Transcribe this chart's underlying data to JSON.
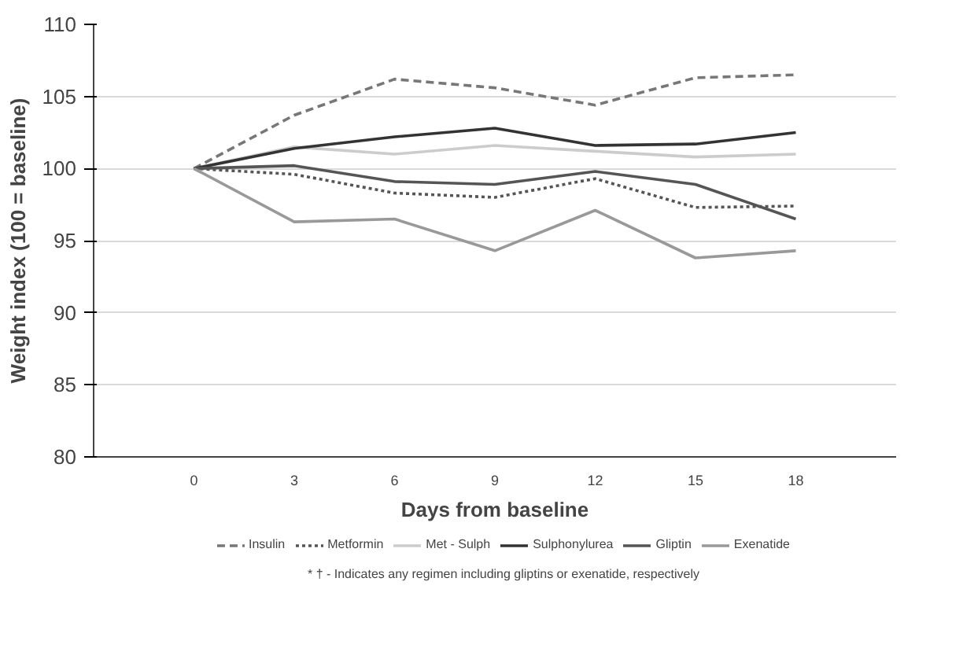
{
  "chart_data": {
    "type": "line",
    "xlabel": "Days from baseline",
    "ylabel": "Weight index (100 = baseline)",
    "categories": [
      "0",
      "3",
      "6",
      "9",
      "12",
      "15",
      "18"
    ],
    "series": [
      {
        "name": "Insulin",
        "color": "#777777",
        "line_style": "dashed",
        "values": [
          100,
          103.7,
          106.2,
          105.6,
          104.4,
          106.3,
          106.5
        ]
      },
      {
        "name": "Metformin",
        "color": "#555555",
        "line_style": "dotted",
        "values": [
          100,
          99.6,
          98.3,
          98.0,
          99.3,
          97.3,
          97.4
        ]
      },
      {
        "name": "Met - Sulph",
        "color": "#cccccc",
        "line_style": "solid",
        "values": [
          100,
          101.5,
          101.0,
          101.6,
          101.2,
          100.8,
          101.0
        ]
      },
      {
        "name": "Sulphonylurea",
        "color": "#333333",
        "line_style": "solid",
        "values": [
          100,
          101.4,
          102.2,
          102.8,
          101.6,
          101.7,
          102.5
        ]
      },
      {
        "name": "Gliptin",
        "color": "#555555",
        "line_style": "solid",
        "values": [
          100,
          100.2,
          99.1,
          98.9,
          99.8,
          98.9,
          96.5
        ]
      },
      {
        "name": "Exenatide",
        "color": "#999999",
        "line_style": "solid",
        "values": [
          100,
          96.3,
          96.5,
          94.3,
          97.1,
          93.8,
          94.3
        ]
      }
    ],
    "ylim": [
      80,
      110
    ],
    "yticks": [
      80,
      85,
      90,
      95,
      100,
      105,
      110
    ],
    "grid": "y",
    "legend": "bottom",
    "annotations": [
      "* † - Indicates any regimen including gliptins or exenatide, respectively"
    ]
  }
}
